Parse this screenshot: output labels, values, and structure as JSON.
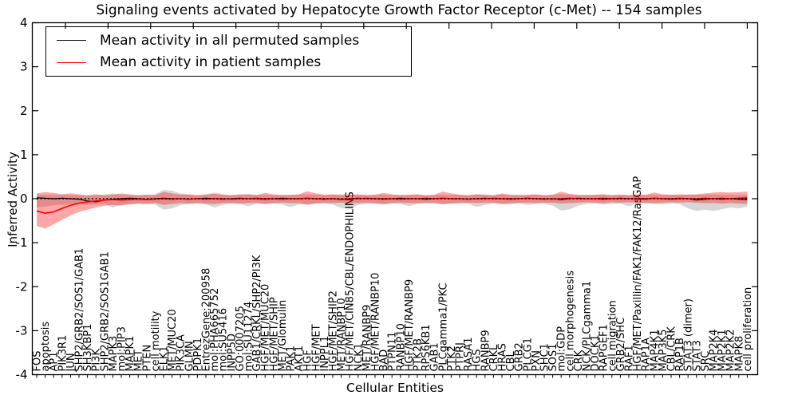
{
  "title": "Signaling events activated by Hepatocyte Growth Factor Receptor (c-Met) -- 154 samples",
  "legend": {
    "items": [
      {
        "label": "Mean activity in all permuted samples",
        "color": "#000000"
      },
      {
        "label": "Mean activity in patient samples",
        "color": "#ff0000"
      }
    ]
  },
  "chart_data": {
    "type": "line",
    "title": "Signaling events activated by Hepatocyte Growth Factor Receptor (c-Met) -- 154 samples",
    "xlabel": "Cellular Entities",
    "ylabel": "Inferred Activity",
    "ylim": [
      -4,
      4
    ],
    "yticks": [
      "4",
      "3",
      "2",
      "1",
      "0",
      "-1",
      "-2",
      "-3",
      "-4"
    ],
    "ytick_values": [
      4,
      3,
      2,
      1,
      0,
      -1,
      -2,
      -3,
      -4
    ],
    "grid": false,
    "legend_position": "upper left",
    "n_samples": 154,
    "categories": [
      "FOS",
      "apoptosis",
      "AP1",
      "PIK3R1",
      "JUN",
      "SHP2/GRB2/SOS1/GAB1",
      "SH3KBP1",
      "PI3K",
      "SHP2/GRB2/SOS1GAB1",
      "MAPK3",
      "mol:PIP3",
      "MAPK1",
      "MET",
      "PTEN",
      "cell motility",
      "ELK1",
      "MET/MUC20",
      "PIK3CA",
      "GLMN",
      "PDPK1",
      "EntrezGene:200958",
      "mol:PHA665752",
      "mol:SU5416",
      "INPP5D",
      "GO:0007205",
      "mol:SU11274",
      "GAB1/CRKL/SHP2/PI3K",
      "HGF/MET/MUC20",
      "HGF/MET/SHIP",
      "MET/Glomulin",
      "PAK1",
      "AKT1",
      "HGF",
      "HGF/MET",
      "INPPL1",
      "HGF/MET/SHIP2",
      "MET/RANBP10",
      "HGF/MET/CIN85/CBL/ENDOPHILINS",
      "NCK1",
      "MET/RANBP9",
      "HGF/MET/RANBP10",
      "BAD",
      "PTPN11",
      "RANBP10",
      "HGF/MET/RANBP9",
      "PTK2B",
      "RPS6KB1",
      "GAB1",
      "PLCgamma1/PKC",
      "PTK2",
      "PTPRJ",
      "RASA1",
      "HGS",
      "RANBP9",
      "CRKL",
      "HRAS",
      "CBL",
      "GRB2",
      "PLCG1",
      "PXN",
      "SHC1",
      "SOS1",
      "mol:GDP",
      "cell morphogenesis",
      "CRK",
      "NCK/PLCgamma1",
      "DOCK1",
      "RAPGEF1",
      "cell migration",
      "GRB2/SHC",
      "RAF1",
      "HGF/MET/Paxillin/FAK1/FAK12/RasGAP",
      "RAP1A",
      "MAP4K1",
      "MAP3K5",
      "CBL/CRK",
      "RAP1B",
      "STAT3 (dimer)",
      "STAT3",
      "SRC",
      "MAP2K4",
      "MAP2K1",
      "MAP2K2",
      "MAPK8",
      "cell proliferation"
    ],
    "series": [
      {
        "name": "Mean activity in all permuted samples",
        "color": "#000000",
        "style": "solid",
        "values": [
          0.02,
          0.01,
          0,
          0.01,
          0,
          -0.01,
          -0.05,
          -0.07,
          -0.03,
          -0.01,
          0,
          0.01,
          0,
          -0.01,
          0,
          0.01,
          0,
          0,
          -0.01,
          0,
          0.01,
          0,
          -0.01,
          0,
          0.01,
          0,
          0,
          -0.01,
          0,
          0.01,
          0,
          0,
          0.01,
          0,
          -0.01,
          0,
          -0.02,
          0,
          0.01,
          0,
          0,
          -0.01,
          0,
          0.01,
          0,
          0,
          -0.01,
          0,
          0.01,
          0,
          0,
          -0.01,
          0,
          0.01,
          0,
          0,
          -0.01,
          0,
          0.01,
          0,
          -0.01,
          0,
          -0.02,
          0,
          0.01,
          0,
          0,
          -0.01,
          0,
          0.01,
          0,
          0,
          -0.01,
          0.01,
          0,
          -0.01,
          0,
          0,
          -0.03,
          -0.01,
          0,
          -0.01,
          0,
          -0.01,
          -0.02
        ]
      },
      {
        "name": "Mean activity in patient samples",
        "color": "#ff0000",
        "style": "solid",
        "values": [
          -0.28,
          -0.33,
          -0.3,
          -0.22,
          -0.15,
          -0.1,
          -0.07,
          -0.05,
          -0.03,
          -0.02,
          -0.03,
          -0.02,
          -0.01,
          -0.02,
          -0.01,
          0,
          -0.01,
          0,
          -0.01,
          0,
          -0.01,
          0,
          0,
          -0.01,
          0,
          0,
          0.01,
          0,
          0,
          -0.01,
          0,
          0,
          0.01,
          0,
          0,
          0,
          -0.01,
          0,
          0,
          0.01,
          0,
          0,
          0,
          -0.01,
          0,
          0,
          0.01,
          0,
          0.01,
          0,
          0,
          -0.01,
          0,
          0,
          0.01,
          0,
          0,
          0,
          0.01,
          0,
          0,
          -0.01,
          0,
          0.01,
          0,
          0,
          0,
          0.01,
          0,
          0,
          0,
          0.01,
          0,
          0.01,
          0,
          0,
          0.01,
          0,
          0,
          0.01,
          0,
          0.01,
          0,
          0.01,
          0.02
        ]
      },
      {
        "name": "zero reference line",
        "color": "#000000",
        "style": "dotted",
        "y": 0
      }
    ],
    "bands": [
      {
        "name": "permuted samples spread",
        "color": "#000000",
        "alpha": 0.16,
        "upper": [
          0.1,
          0.09,
          0.08,
          0.09,
          0.08,
          0.08,
          0.07,
          0.08,
          0.09,
          0.12,
          0.09,
          0.08,
          0.08,
          0.09,
          0.1,
          0.2,
          0.18,
          0.12,
          0.09,
          0.08,
          0.1,
          0.14,
          0.1,
          0.08,
          0.09,
          0.11,
          0.09,
          0.09,
          0.08,
          0.09,
          0.08,
          0.09,
          0.1,
          0.09,
          0.08,
          0.09,
          0.1,
          0.09,
          0.08,
          0.09,
          0.08,
          0.09,
          0.08,
          0.09,
          0.08,
          0.09,
          0.08,
          0.08,
          0.09,
          0.08,
          0.09,
          0.08,
          0.1,
          0.09,
          0.08,
          0.09,
          0.08,
          0.09,
          0.08,
          0.09,
          0.08,
          0.09,
          0.1,
          0.09,
          0.08,
          0.09,
          0.08,
          0.09,
          0.08,
          0.09,
          0.08,
          0.09,
          0.08,
          0.09,
          0.08,
          0.09,
          0.08,
          0.1,
          0.09,
          0.09,
          0.1,
          0.09,
          0.09,
          0.08,
          0.09
        ],
        "lower": [
          -0.2,
          -0.18,
          -0.15,
          -0.14,
          -0.12,
          -0.12,
          -0.14,
          -0.13,
          -0.12,
          -0.2,
          -0.14,
          -0.12,
          -0.11,
          -0.12,
          -0.13,
          -0.25,
          -0.22,
          -0.15,
          -0.12,
          -0.11,
          -0.13,
          -0.2,
          -0.14,
          -0.11,
          -0.12,
          -0.17,
          -0.12,
          -0.12,
          -0.11,
          -0.13,
          -0.19,
          -0.13,
          -0.12,
          -0.11,
          -0.12,
          -0.13,
          -0.21,
          -0.22,
          -0.14,
          -0.12,
          -0.12,
          -0.13,
          -0.11,
          -0.12,
          -0.17,
          -0.12,
          -0.11,
          -0.12,
          -0.13,
          -0.11,
          -0.12,
          -0.11,
          -0.19,
          -0.14,
          -0.11,
          -0.12,
          -0.13,
          -0.11,
          -0.14,
          -0.12,
          -0.11,
          -0.16,
          -0.27,
          -0.24,
          -0.16,
          -0.12,
          -0.11,
          -0.13,
          -0.12,
          -0.11,
          -0.17,
          -0.12,
          -0.11,
          -0.12,
          -0.13,
          -0.11,
          -0.12,
          -0.22,
          -0.28,
          -0.25,
          -0.28,
          -0.24,
          -0.2,
          -0.22,
          -0.18
        ]
      },
      {
        "name": "patient samples spread",
        "color": "#ff0000",
        "alpha": 0.35,
        "upper": [
          0.12,
          0.15,
          0.13,
          0.1,
          0.12,
          0.1,
          0.08,
          0.1,
          0.08,
          0.09,
          0.12,
          0.1,
          0.08,
          0.09,
          0.08,
          0.15,
          0.12,
          0.09,
          0.1,
          0.08,
          0.09,
          0.11,
          0.09,
          0.08,
          0.1,
          0.09,
          0.08,
          0.13,
          0.1,
          0.08,
          0.09,
          0.1,
          0.17,
          0.12,
          0.09,
          0.1,
          0.08,
          0.09,
          0.1,
          0.08,
          0.09,
          0.13,
          0.1,
          0.08,
          0.09,
          0.1,
          0.08,
          0.09,
          0.16,
          0.12,
          0.09,
          0.08,
          0.1,
          0.09,
          0.08,
          0.12,
          0.09,
          0.08,
          0.09,
          0.1,
          0.08,
          0.09,
          0.16,
          0.11,
          0.09,
          0.08,
          0.09,
          0.1,
          0.08,
          0.09,
          0.08,
          0.1,
          0.09,
          0.14,
          0.1,
          0.09,
          0.1,
          0.09,
          0.1,
          0.12,
          0.14,
          0.15,
          0.14,
          0.15,
          0.16
        ],
        "lower": [
          -0.62,
          -0.68,
          -0.58,
          -0.48,
          -0.38,
          -0.3,
          -0.25,
          -0.2,
          -0.16,
          -0.14,
          -0.15,
          -0.13,
          -0.11,
          -0.12,
          -0.1,
          -0.14,
          -0.12,
          -0.1,
          -0.11,
          -0.1,
          -0.11,
          -0.12,
          -0.1,
          -0.1,
          -0.11,
          -0.1,
          -0.09,
          -0.12,
          -0.1,
          -0.09,
          -0.1,
          -0.1,
          -0.14,
          -0.11,
          -0.09,
          -0.1,
          -0.09,
          -0.1,
          -0.1,
          -0.09,
          -0.1,
          -0.12,
          -0.1,
          -0.09,
          -0.1,
          -0.1,
          -0.09,
          -0.09,
          -0.12,
          -0.11,
          -0.09,
          -0.09,
          -0.1,
          -0.09,
          -0.09,
          -0.12,
          -0.1,
          -0.09,
          -0.09,
          -0.1,
          -0.09,
          -0.09,
          -0.11,
          -0.1,
          -0.09,
          -0.08,
          -0.09,
          -0.1,
          -0.08,
          -0.09,
          -0.08,
          -0.09,
          -0.09,
          -0.1,
          -0.09,
          -0.08,
          -0.09,
          -0.08,
          -0.09,
          -0.1,
          -0.1,
          -0.11,
          -0.1,
          -0.11,
          -0.12
        ]
      }
    ]
  }
}
